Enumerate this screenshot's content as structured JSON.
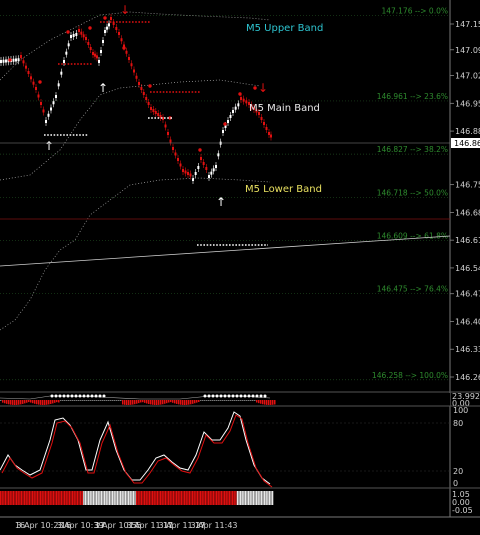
{
  "price_axis": [
    "147.155",
    "147.090",
    "147.025",
    "146.955",
    "146.885",
    "146.750",
    "146.680",
    "146.610",
    "146.540",
    "146.475",
    "146.405",
    "146.335",
    "146.265"
  ],
  "current_price": "146.862",
  "fib_levels": [
    {
      "label": "147.176 --> 0.0%",
      "price": 147.176
    },
    {
      "label": "146.961 --> 23.6%",
      "price": 146.961
    },
    {
      "label": "146.827 --> 38.2%",
      "price": 146.827
    },
    {
      "label": "146.718 --> 50.0%",
      "price": 146.718
    },
    {
      "label": "146.609 --> 61.8%",
      "price": 146.609
    },
    {
      "label": "146.475 --> 76.4%",
      "price": 146.475
    },
    {
      "label": "146.258 --> 100.0%",
      "price": 146.258
    }
  ],
  "band_labels": {
    "upper": "M5 Upper Band",
    "main": "M5 Main Band",
    "lower": "M5 Lower Band"
  },
  "band_colors": {
    "upper": "#2ec4d0",
    "main": "#e8e8e8",
    "lower": "#e8e060"
  },
  "sub1_axis": [
    "23.9929",
    "0.00"
  ],
  "sub2_axis": [
    "100",
    "80",
    "20",
    "0"
  ],
  "sub3_axis": [
    "1.05",
    "0.00",
    "-0.05"
  ],
  "time_axis": [
    "16",
    "3 Apr 10:23",
    "16",
    "3 Apr 10:39",
    "17",
    "3 Apr 10:55",
    "17",
    "3 Apr 11:11",
    "17",
    "3 Apr 11:27",
    "17",
    "3 Apr 11:43"
  ],
  "colors": {
    "bull": "#ffffff",
    "bear": "#e01010",
    "grid": "#1e3a1e",
    "osc_main": "#ffffff",
    "osc_signal": "#e01010"
  }
}
